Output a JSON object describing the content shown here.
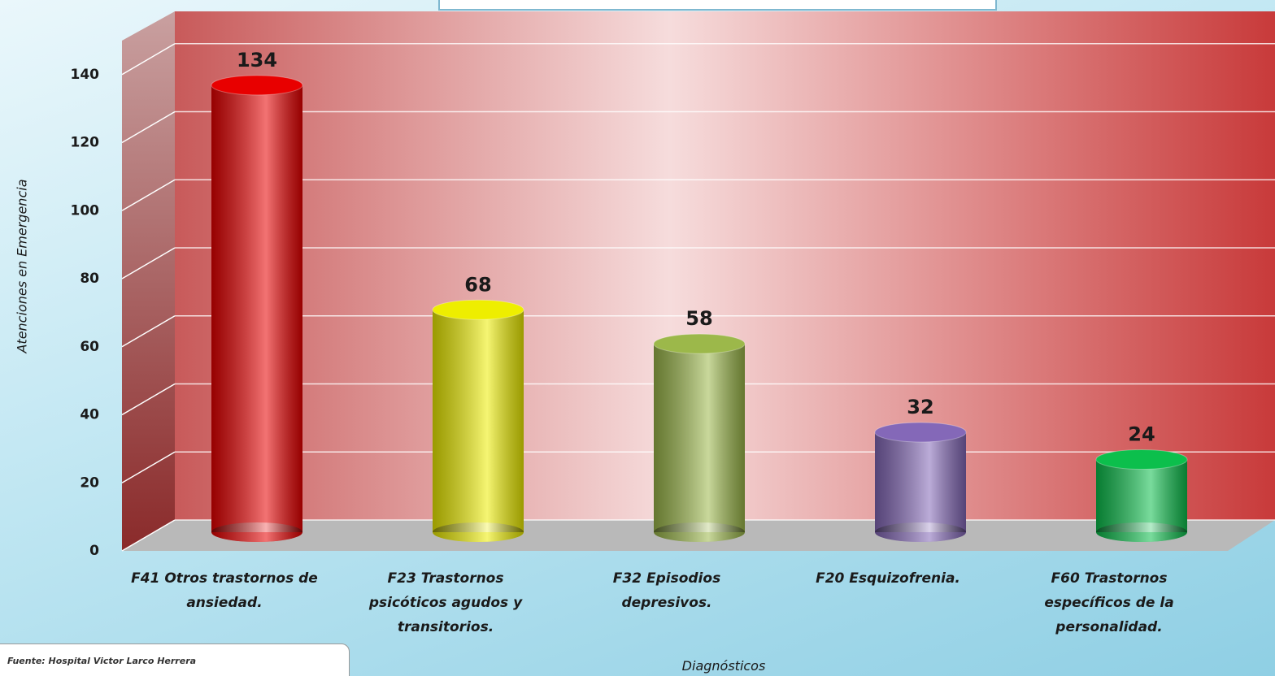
{
  "chart_data": {
    "type": "bar",
    "y_label": "Atenciones en Emergencia",
    "x_label": "Diagnósticos",
    "source": "Fuente:  Hospital Victor Larco Herrera",
    "categories": [
      "F41 Otros trastornos de ansiedad.",
      "F23 Trastornos psicóticos agudos y transitorios.",
      "F32 Episodios depresivos.",
      "F20 Esquizofrenia.",
      "F60 Trastornos específicos de la personalidad."
    ],
    "values": [
      134,
      68,
      58,
      32,
      24
    ],
    "colors": [
      "#e80000",
      "#eeee00",
      "#9cb84a",
      "#8468b8",
      "#0cbf4c"
    ],
    "ylim": [
      0,
      160
    ],
    "yticks": [
      0,
      20,
      40,
      60,
      80,
      100,
      120,
      140
    ],
    "grid": true
  }
}
